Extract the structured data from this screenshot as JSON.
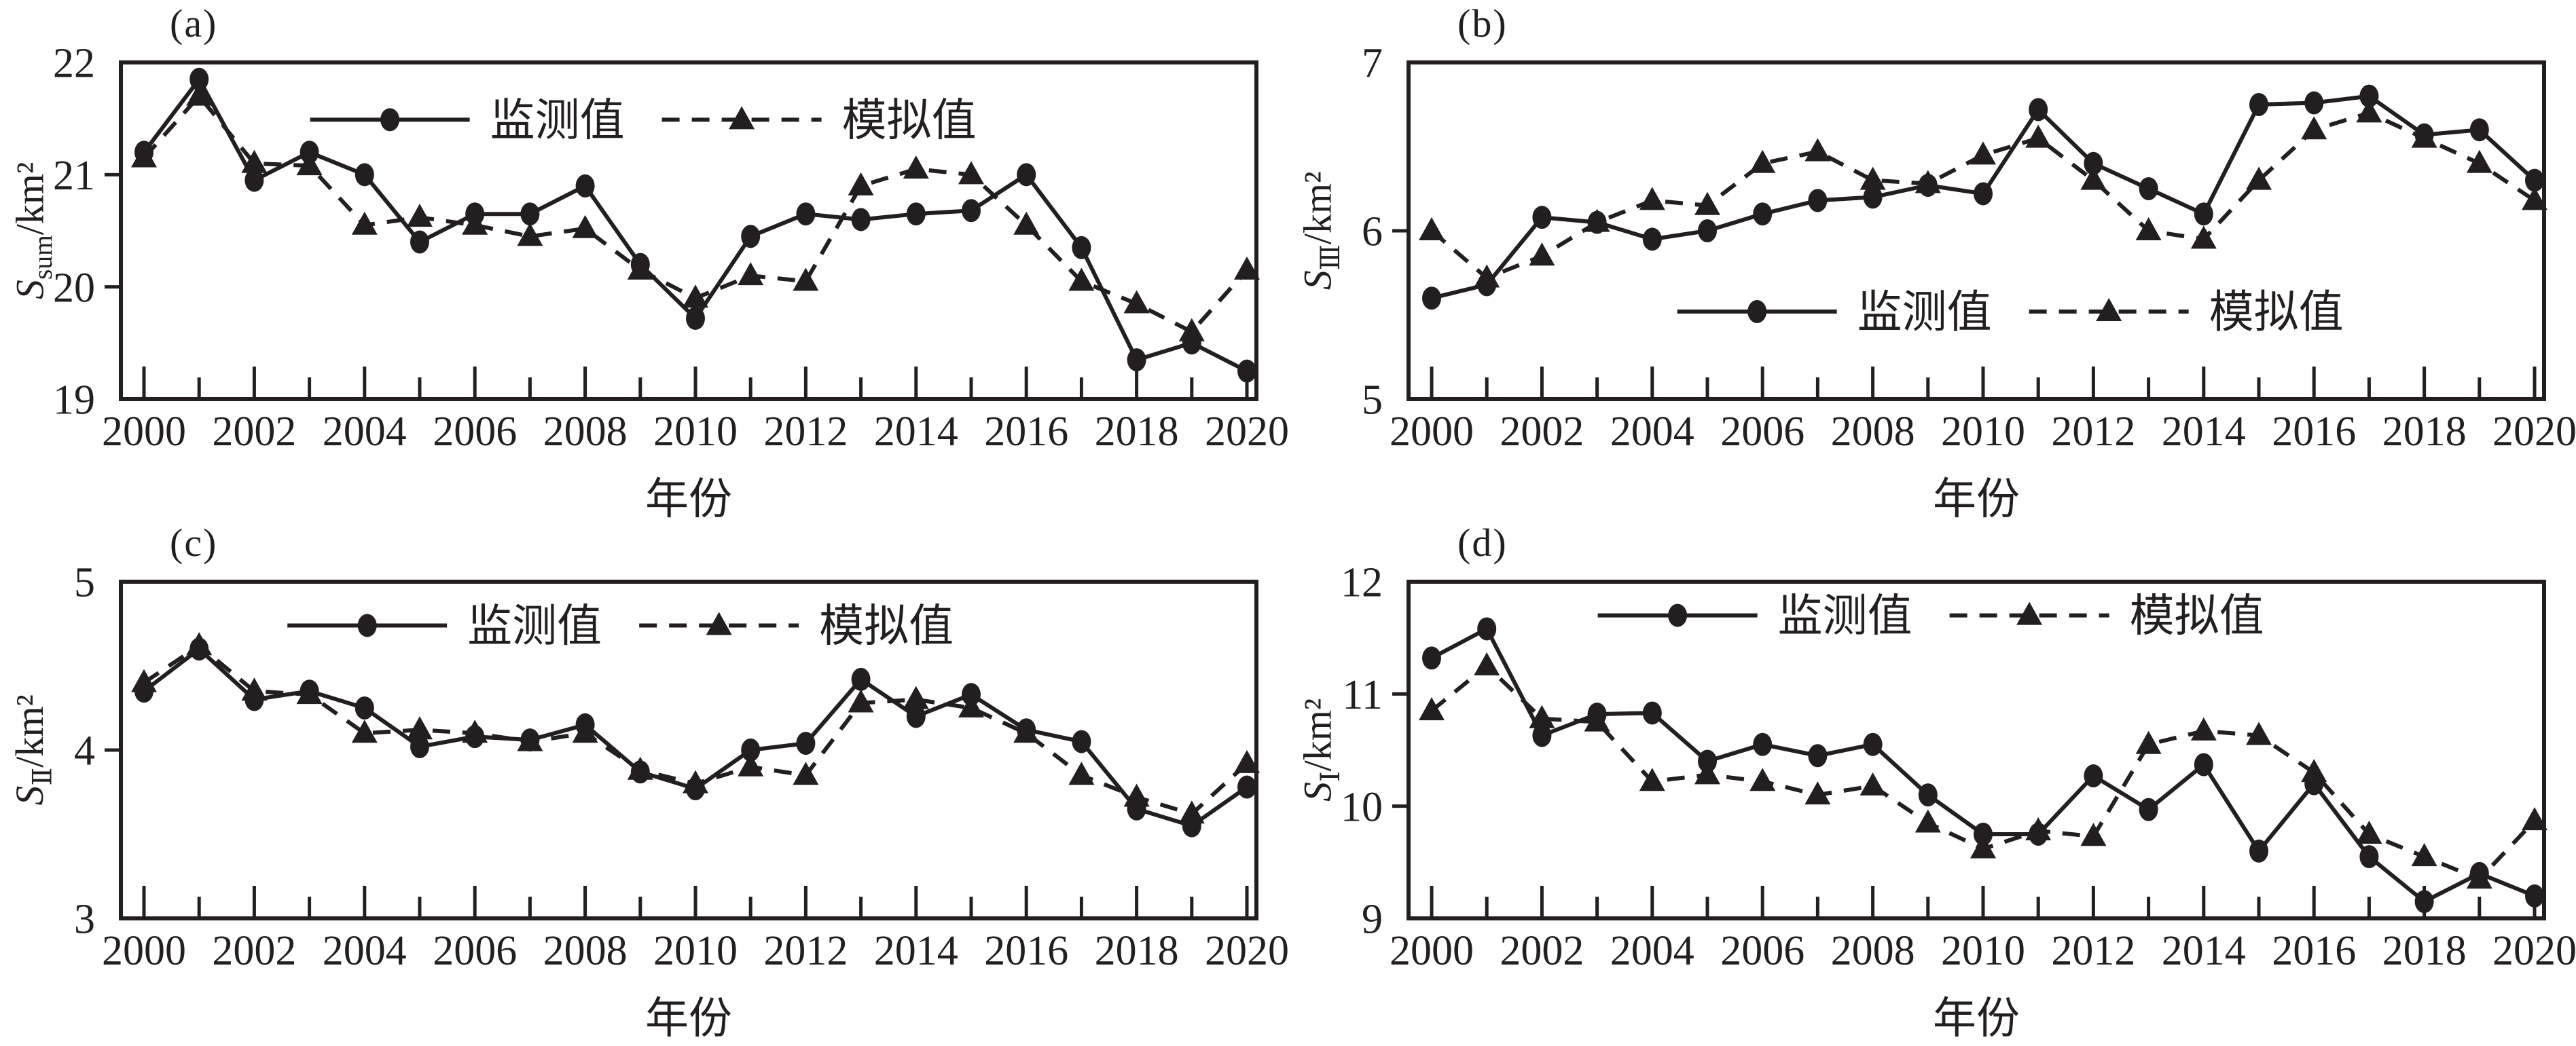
{
  "figure": {
    "background": "#ffffff",
    "ink": "#231f20",
    "x_axis_title": "年份",
    "legend_labels": {
      "monitored": "监测值",
      "simulated": "模拟值"
    }
  },
  "chart_data": [
    {
      "type": "line",
      "panel_label": "(a)",
      "xlabel": "年份",
      "ylabel": "Ssum/km²",
      "ylabel_parts": {
        "symbol": "S",
        "subscript": "sum",
        "unit": "/km²"
      },
      "ylim": [
        19,
        22
      ],
      "yticks": [
        19,
        20,
        21,
        22
      ],
      "xtick_label_step": 2,
      "grid": false,
      "legend_position": "inside-top",
      "legend_pos": {
        "x": 0.46,
        "y": 0.17
      },
      "x": [
        2000,
        2001,
        2002,
        2003,
        2004,
        2005,
        2006,
        2007,
        2008,
        2009,
        2010,
        2011,
        2012,
        2013,
        2014,
        2015,
        2016,
        2017,
        2018,
        2019,
        2020
      ],
      "series": [
        {
          "name": "监测值",
          "marker": "circle",
          "line": "solid",
          "values": [
            21.2,
            21.85,
            20.95,
            21.2,
            21.0,
            20.4,
            20.65,
            20.65,
            20.9,
            20.2,
            19.72,
            20.45,
            20.65,
            20.6,
            20.65,
            20.68,
            21.0,
            20.35,
            19.35,
            19.5,
            19.25
          ]
        },
        {
          "name": "模拟值",
          "marker": "triangle",
          "line": "dashed",
          "values": [
            21.15,
            21.7,
            21.1,
            21.08,
            20.55,
            20.62,
            20.55,
            20.45,
            20.52,
            20.15,
            19.9,
            20.1,
            20.05,
            20.9,
            21.05,
            21.0,
            20.55,
            20.05,
            19.85,
            19.6,
            20.15
          ]
        }
      ]
    },
    {
      "type": "line",
      "panel_label": "(b)",
      "xlabel": "年份",
      "ylabel": "SⅢ/km²",
      "ylabel_parts": {
        "symbol": "S",
        "subscript": "Ⅲ",
        "unit": "/km²"
      },
      "ylim": [
        5,
        7
      ],
      "yticks": [
        5,
        6,
        7
      ],
      "xtick_label_step": 2,
      "grid": false,
      "legend_position": "inside-bottom",
      "legend_pos": {
        "x": 0.53,
        "y": 0.74
      },
      "x": [
        2000,
        2001,
        2002,
        2003,
        2004,
        2005,
        2006,
        2007,
        2008,
        2009,
        2010,
        2011,
        2012,
        2013,
        2014,
        2015,
        2016,
        2017,
        2018,
        2019,
        2020
      ],
      "series": [
        {
          "name": "监测值",
          "marker": "circle",
          "line": "solid",
          "values": [
            5.6,
            5.68,
            6.08,
            6.05,
            5.95,
            6.0,
            6.1,
            6.18,
            6.2,
            6.27,
            6.22,
            6.72,
            6.4,
            6.25,
            6.1,
            6.75,
            6.76,
            6.8,
            6.57,
            6.6,
            6.3
          ]
        },
        {
          "name": "模拟值",
          "marker": "triangle",
          "line": "dashed",
          "values": [
            6.0,
            5.72,
            5.85,
            6.05,
            6.18,
            6.15,
            6.4,
            6.47,
            6.3,
            6.28,
            6.45,
            6.55,
            6.3,
            6.0,
            5.95,
            6.3,
            6.6,
            6.7,
            6.55,
            6.4,
            6.18
          ]
        }
      ]
    },
    {
      "type": "line",
      "panel_label": "(c)",
      "xlabel": "年份",
      "ylabel": "SⅡ/km²",
      "ylabel_parts": {
        "symbol": "S",
        "subscript": "Ⅱ",
        "unit": "/km²"
      },
      "ylim": [
        3,
        5
      ],
      "yticks": [
        3,
        4,
        5
      ],
      "xtick_label_step": 2,
      "grid": false,
      "legend_position": "inside-top",
      "legend_pos": {
        "x": 0.44,
        "y": 0.13
      },
      "x": [
        2000,
        2001,
        2002,
        2003,
        2004,
        2005,
        2006,
        2007,
        2008,
        2009,
        2010,
        2011,
        2012,
        2013,
        2014,
        2015,
        2016,
        2017,
        2018,
        2019,
        2020
      ],
      "series": [
        {
          "name": "监测值",
          "marker": "circle",
          "line": "solid",
          "values": [
            4.35,
            4.6,
            4.3,
            4.35,
            4.25,
            4.02,
            4.08,
            4.06,
            4.15,
            3.87,
            3.77,
            4.0,
            4.04,
            4.42,
            4.2,
            4.33,
            4.12,
            4.05,
            3.65,
            3.55,
            3.78
          ]
        },
        {
          "name": "模拟值",
          "marker": "triangle",
          "line": "dashed",
          "values": [
            4.4,
            4.62,
            4.35,
            4.33,
            4.1,
            4.12,
            4.1,
            4.05,
            4.1,
            3.88,
            3.8,
            3.9,
            3.85,
            4.28,
            4.3,
            4.25,
            4.1,
            3.85,
            3.72,
            3.62,
            3.92
          ]
        }
      ]
    },
    {
      "type": "line",
      "panel_label": "(d)",
      "xlabel": "年份",
      "ylabel": "SⅠ/km²",
      "ylabel_parts": {
        "symbol": "S",
        "subscript": "Ⅰ",
        "unit": "/km²"
      },
      "ylim": [
        9,
        12
      ],
      "yticks": [
        9,
        10,
        11,
        12
      ],
      "xtick_label_step": 2,
      "grid": false,
      "legend_position": "inside-top",
      "legend_pos": {
        "x": 0.46,
        "y": 0.1
      },
      "x": [
        2000,
        2001,
        2002,
        2003,
        2004,
        2005,
        2006,
        2007,
        2008,
        2009,
        2010,
        2011,
        2012,
        2013,
        2014,
        2015,
        2016,
        2017,
        2018,
        2019,
        2020
      ],
      "series": [
        {
          "name": "监测值",
          "marker": "circle",
          "line": "solid",
          "values": [
            11.32,
            11.58,
            10.63,
            10.82,
            10.83,
            10.4,
            10.55,
            10.45,
            10.55,
            10.1,
            9.75,
            9.75,
            10.27,
            9.97,
            10.37,
            9.6,
            10.2,
            9.55,
            9.15,
            9.4,
            9.2
          ]
        },
        {
          "name": "模拟值",
          "marker": "triangle",
          "line": "dashed",
          "values": [
            10.85,
            11.25,
            10.78,
            10.75,
            10.22,
            10.28,
            10.22,
            10.1,
            10.18,
            9.85,
            9.62,
            9.78,
            9.73,
            10.55,
            10.67,
            10.63,
            10.3,
            9.75,
            9.55,
            9.35,
            9.87
          ]
        }
      ]
    }
  ]
}
